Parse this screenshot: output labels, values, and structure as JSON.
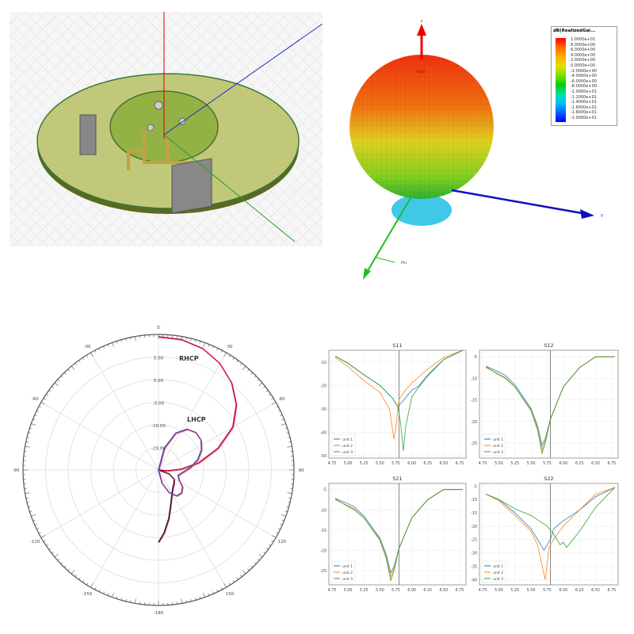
{
  "model_view": {
    "description_labels": []
  },
  "pattern_3d": {
    "axis_labels": {
      "z": "z",
      "y": "y",
      "phi": "Phi",
      "theta": "Theta"
    },
    "legend_title": "dB(RealizedGai...",
    "legend_values": [
      "1.0000e+01",
      "8.0000e+00",
      "6.0000e+00",
      "4.0000e+00",
      "2.0000e+00",
      "0.0000e+00",
      "-2.0000e+00",
      "-4.0000e+00",
      "-6.0000e+00",
      "-8.0000e+00",
      "-1.0000e+01",
      "-1.2000e+01",
      "-1.4000e+01",
      "-1.6000e+01",
      "-1.8000e+01",
      "-2.0000e+01"
    ],
    "colors": {
      "z_axis": "#e00000",
      "y_axis": "#1010c0",
      "x_axis": "#20c020"
    }
  },
  "chart_data": [
    {
      "type": "polar",
      "radial_ticks": [
        "5.00",
        "0.00",
        "-5.00",
        "-10.00",
        "-15.00"
      ],
      "radial_range": [
        -20,
        10
      ],
      "angle_ticks": [
        "0",
        "30",
        "60",
        "90",
        "120",
        "150",
        "-180",
        "-150",
        "-120",
        "-90",
        "-60",
        "-30"
      ],
      "annotations": [
        "RHCP",
        "LHCP"
      ],
      "series": [
        {
          "name": "RHCP",
          "color": "#c01040",
          "points": [
            [
              0,
              9.5
            ],
            [
              10,
              9.3
            ],
            [
              20,
              8.6
            ],
            [
              30,
              7.2
            ],
            [
              40,
              5.2
            ],
            [
              50,
              2.5
            ],
            [
              60,
              -1
            ],
            [
              70,
              -6
            ],
            [
              80,
              -11
            ],
            [
              88,
              -15
            ],
            [
              95,
              -18
            ],
            [
              100,
              -20
            ]
          ]
        },
        {
          "name": "RHCP",
          "color": "#301040",
          "points": [
            [
              180,
              -4
            ],
            [
              175,
              -6
            ],
            [
              168,
              -9
            ],
            [
              160,
              -12
            ],
            [
              150,
              -14
            ],
            [
              140,
              -15
            ],
            [
              130,
              -15.5
            ],
            [
              120,
              -16
            ],
            [
              110,
              -17.5
            ],
            [
              100,
              -20
            ]
          ]
        },
        {
          "name": "LHCP",
          "color": "#6040a0",
          "points": [
            [
              5,
              -20
            ],
            [
              15,
              -15
            ],
            [
              25,
              -11
            ],
            [
              35,
              -9
            ],
            [
              45,
              -8.3
            ],
            [
              55,
              -8.5
            ],
            [
              65,
              -9.5
            ],
            [
              75,
              -11
            ],
            [
              85,
              -12.8
            ],
            [
              95,
              -14.5
            ],
            [
              105,
              -15.5
            ],
            [
              115,
              -15
            ],
            [
              125,
              -13.5
            ],
            [
              135,
              -12.8
            ],
            [
              145,
              -13
            ],
            [
              155,
              -14.5
            ],
            [
              165,
              -17
            ],
            [
              175,
              -20
            ]
          ]
        }
      ]
    },
    {
      "type": "line",
      "title": "S11",
      "xlim": [
        4.7,
        6.85
      ],
      "ylim": [
        -51,
        -5
      ],
      "xticks": [
        "4.75",
        "5.00",
        "5.25",
        "5.50",
        "5.75",
        "6.00",
        "6.25",
        "6.50",
        "6.75"
      ],
      "yticks": [
        -10,
        -20,
        -30,
        -40,
        -50
      ],
      "vline": 5.8,
      "grid": true,
      "legend": "bottom-left",
      "series": [
        {
          "name": "unit 1",
          "color": "#1f77b4",
          "x": [
            4.8,
            5.0,
            5.25,
            5.5,
            5.7,
            5.78,
            5.85,
            6.0,
            6.1,
            6.25,
            6.5,
            6.8
          ],
          "y": [
            -7.5,
            -10.5,
            -15.5,
            -20,
            -25.5,
            -29,
            -27,
            -22,
            -20.5,
            -15.5,
            -9,
            -5
          ]
        },
        {
          "name": "unit 2",
          "color": "#ff7f0e",
          "x": [
            4.8,
            5.0,
            5.25,
            5.5,
            5.65,
            5.72,
            5.75,
            5.8,
            5.9,
            6.0,
            6.25,
            6.5,
            6.8
          ],
          "y": [
            -8,
            -12,
            -18,
            -23,
            -30,
            -43,
            -38,
            -26,
            -22,
            -19,
            -13,
            -8,
            -5
          ]
        },
        {
          "name": "unit 3",
          "color": "#2ca02c",
          "x": [
            4.8,
            5.0,
            5.25,
            5.5,
            5.7,
            5.78,
            5.82,
            5.87,
            5.9,
            6.0,
            6.1,
            6.25,
            6.5,
            6.8
          ],
          "y": [
            -7.5,
            -10.5,
            -15.5,
            -20,
            -25.5,
            -29,
            -35,
            -48,
            -38,
            -25,
            -21,
            -16,
            -9,
            -5
          ]
        }
      ]
    },
    {
      "type": "line",
      "title": "S12",
      "xlim": [
        4.7,
        6.85
      ],
      "ylim": [
        -28.5,
        -3.5
      ],
      "xticks": [
        "4.75",
        "5.00",
        "5.25",
        "5.50",
        "5.75",
        "6.00",
        "6.25",
        "6.50",
        "6.75"
      ],
      "yticks": [
        -5,
        -10,
        -15,
        -20,
        -25
      ],
      "vline": 5.8,
      "grid": true,
      "legend": "bottom-left",
      "series": [
        {
          "name": "unit 1",
          "color": "#1f77b4",
          "x": [
            4.8,
            5.0,
            5.1,
            5.25,
            5.5,
            5.6,
            5.67,
            5.72,
            5.8,
            6.0,
            6.25,
            6.5,
            6.8
          ],
          "y": [
            -7.2,
            -8.5,
            -9.3,
            -11.5,
            -17,
            -21,
            -25.5,
            -24,
            -19.5,
            -12,
            -7.5,
            -5,
            -5
          ]
        },
        {
          "name": "unit 2",
          "color": "#ff7f0e",
          "x": [
            4.8,
            5.0,
            5.1,
            5.25,
            5.5,
            5.6,
            5.67,
            5.72,
            5.8,
            6.0,
            6.25,
            6.5,
            6.8
          ],
          "y": [
            -7.5,
            -9,
            -9.8,
            -12,
            -17.3,
            -21.5,
            -26.5,
            -24.5,
            -19.5,
            -12,
            -7.5,
            -5,
            -5
          ]
        },
        {
          "name": "unit 3",
          "color": "#2ca02c",
          "x": [
            4.8,
            5.0,
            5.1,
            5.25,
            5.5,
            5.6,
            5.67,
            5.72,
            5.8,
            6.0,
            6.25,
            6.5,
            6.8
          ],
          "y": [
            -7.3,
            -9.2,
            -10,
            -12,
            -17.5,
            -22,
            -27.5,
            -25,
            -19.5,
            -12,
            -7.5,
            -5,
            -5
          ]
        }
      ]
    },
    {
      "type": "line",
      "title": "S21",
      "xlim": [
        4.7,
        6.85
      ],
      "ylim": [
        -28.5,
        -3.5
      ],
      "xticks": [
        "4.75",
        "5.00",
        "5.25",
        "5.50",
        "5.75",
        "6.00",
        "6.25",
        "6.50",
        "6.75"
      ],
      "yticks": [
        -5,
        -10,
        -15,
        -20,
        -25
      ],
      "vline": 5.8,
      "grid": true,
      "legend": "bottom-left",
      "series": [
        {
          "name": "unit 1",
          "color": "#1f77b4",
          "x": [
            4.8,
            5.0,
            5.1,
            5.25,
            5.5,
            5.6,
            5.67,
            5.72,
            5.8,
            6.0,
            6.25,
            6.5,
            6.8
          ],
          "y": [
            -7.2,
            -8.5,
            -9.3,
            -11.5,
            -17,
            -21,
            -25.5,
            -24,
            -19.5,
            -12,
            -7.5,
            -5,
            -5
          ]
        },
        {
          "name": "unit 2",
          "color": "#ff7f0e",
          "x": [
            4.8,
            5.0,
            5.1,
            5.25,
            5.5,
            5.6,
            5.67,
            5.72,
            5.8,
            6.0,
            6.25,
            6.5,
            6.8
          ],
          "y": [
            -7.5,
            -9,
            -9.8,
            -12,
            -17.3,
            -21.5,
            -26.5,
            -24.5,
            -19.5,
            -12,
            -7.5,
            -5,
            -5
          ]
        },
        {
          "name": "unit 3",
          "color": "#2ca02c",
          "x": [
            4.8,
            5.0,
            5.1,
            5.25,
            5.5,
            5.6,
            5.67,
            5.72,
            5.8,
            6.0,
            6.25,
            6.5,
            6.8
          ],
          "y": [
            -7.3,
            -9.2,
            -10,
            -12,
            -17.5,
            -22,
            -27.5,
            -25,
            -19.5,
            -12,
            -7.5,
            -5,
            -5
          ]
        }
      ]
    },
    {
      "type": "line",
      "title": "S22",
      "xlim": [
        4.7,
        6.85
      ],
      "ylim": [
        -42,
        -4
      ],
      "xticks": [
        "4.75",
        "5.00",
        "5.25",
        "5.50",
        "5.75",
        "6.00",
        "6.25",
        "6.50",
        "6.75"
      ],
      "yticks": [
        -5,
        -10,
        -15,
        -20,
        -25,
        -30,
        -35,
        -40
      ],
      "vline": 5.8,
      "grid": true,
      "legend": "bottom-left",
      "series": [
        {
          "name": "unit 1",
          "color": "#1f77b4",
          "x": [
            4.8,
            5.0,
            5.25,
            5.5,
            5.6,
            5.7,
            5.8,
            5.85,
            6.0,
            6.25,
            6.5,
            6.8
          ],
          "y": [
            -8,
            -10,
            -15,
            -21,
            -25,
            -29,
            -25,
            -21,
            -18,
            -14,
            -9,
            -5.5
          ]
        },
        {
          "name": "unit 2",
          "color": "#ff7f0e",
          "x": [
            4.8,
            5.0,
            5.25,
            5.5,
            5.6,
            5.7,
            5.72,
            5.78,
            5.85,
            6.0,
            6.25,
            6.5,
            6.8
          ],
          "y": [
            -8,
            -10.5,
            -16,
            -22,
            -27,
            -38,
            -40,
            -28,
            -25,
            -20,
            -14,
            -8,
            -5.5
          ]
        },
        {
          "name": "unit 3",
          "color": "#2ca02c",
          "x": [
            4.8,
            5.0,
            5.25,
            5.5,
            5.75,
            5.85,
            5.9,
            5.95,
            6.0,
            6.05,
            6.15,
            6.25,
            6.5,
            6.8
          ],
          "y": [
            -8,
            -10,
            -13.5,
            -16,
            -20,
            -23,
            -25,
            -27,
            -26,
            -28,
            -25,
            -22,
            -13,
            -5.5
          ]
        }
      ]
    }
  ]
}
